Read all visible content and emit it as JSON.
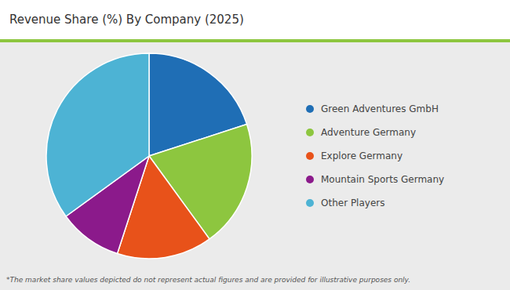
{
  "chart_data": {
    "type": "pie",
    "title": "Revenue Share (%) By Company (2025)",
    "categories": [
      "Green Adventures GmbH",
      "Adventure Germany",
      "Explore Germany",
      "Mountain Sports Germany",
      "Other Players"
    ],
    "values": [
      20,
      20,
      15,
      10,
      35
    ],
    "colors": [
      "#1f6eb5",
      "#8dc63f",
      "#e8521a",
      "#8b1a8b",
      "#4db3d4"
    ],
    "legend": "right",
    "annotations": [
      "*The market share values depicted do not represent actual figures and are provided for illustrative purposes only."
    ]
  }
}
